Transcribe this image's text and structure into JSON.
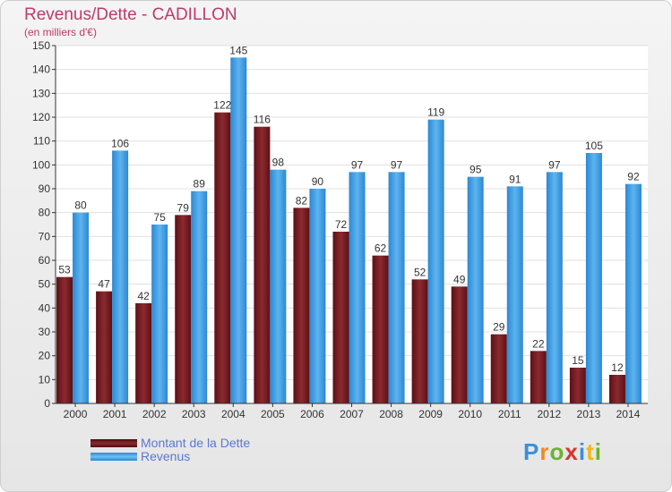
{
  "chart_data": {
    "type": "bar",
    "title": "Revenus/Dette - CADILLON",
    "subtitle": "(en milliers d'€)",
    "categories": [
      "2000",
      "2001",
      "2002",
      "2003",
      "2004",
      "2005",
      "2006",
      "2007",
      "2008",
      "2009",
      "2010",
      "2011",
      "2012",
      "2013",
      "2014"
    ],
    "series": [
      {
        "name": "Montant de la Dette",
        "color": "#7a1a1f",
        "values": [
          53,
          47,
          42,
          79,
          122,
          116,
          82,
          72,
          62,
          52,
          49,
          29,
          22,
          15,
          12
        ]
      },
      {
        "name": "Revenus",
        "color": "#3d9ee6",
        "values": [
          80,
          106,
          75,
          89,
          145,
          98,
          90,
          97,
          97,
          119,
          95,
          91,
          97,
          105,
          92
        ]
      }
    ],
    "ylim": [
      0,
      150
    ],
    "yticks": [
      0,
      10,
      20,
      30,
      40,
      50,
      60,
      70,
      80,
      90,
      100,
      110,
      120,
      130,
      140,
      150
    ],
    "grid": true,
    "legend_position": "bottom-left"
  },
  "logo": {
    "letters": [
      "P",
      "r",
      "o",
      "x",
      "i",
      "t",
      "i"
    ],
    "colors": [
      "#3a8fd8",
      "#f08a1c",
      "#6ab42d",
      "#d8342c",
      "#3a8fd8",
      "#f0b81c",
      "#6ab42d"
    ]
  }
}
